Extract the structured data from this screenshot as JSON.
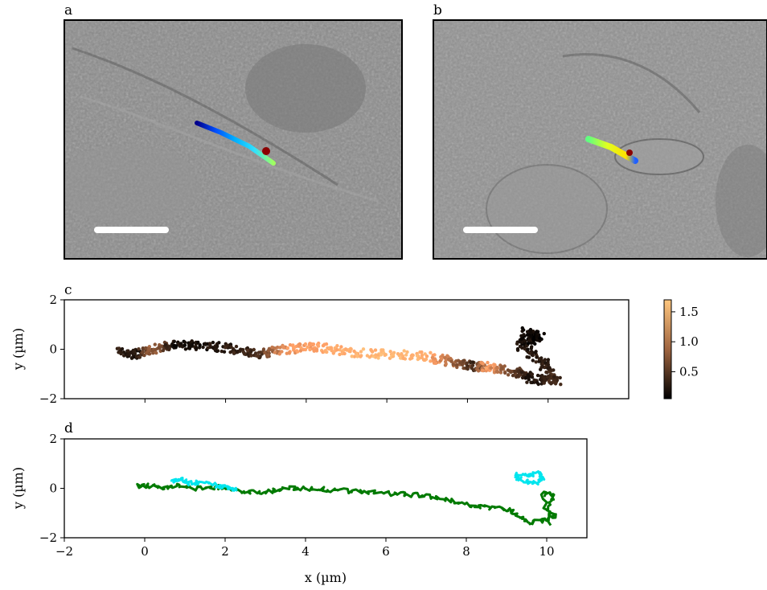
{
  "panels": {
    "a": {
      "label": "a"
    },
    "b": {
      "label": "b"
    },
    "c": {
      "label": "c"
    },
    "d": {
      "label": "d"
    }
  },
  "colors": {
    "micrograph_bg": "#8a8a8a",
    "trajectory_d_main": "#007a00",
    "trajectory_d_highlight": "#00e5ee",
    "scalebar": "#ffffff",
    "end_marker": "#8b0000"
  },
  "chart_data": [
    {
      "panel": "c",
      "type": "scatter",
      "xlim": [
        -2,
        12
      ],
      "ylim": [
        -2,
        2
      ],
      "xticks": [],
      "yticks": [
        -2,
        0,
        2
      ],
      "xlabel": "",
      "ylabel": "y (µm)",
      "colormap": "copper",
      "colorbar": {
        "ticks": [
          0.5,
          1.0,
          1.5
        ],
        "tick_labels": [
          "0.5",
          "1.0",
          "1.5"
        ],
        "range": [
          0.05,
          1.7
        ]
      },
      "path": [
        {
          "x": -0.6,
          "y": -0.1,
          "c": 0.3
        },
        {
          "x": -0.2,
          "y": -0.2,
          "c": 0.2
        },
        {
          "x": 0.2,
          "y": 0.0,
          "c": 0.9
        },
        {
          "x": 0.8,
          "y": 0.2,
          "c": 0.15
        },
        {
          "x": 1.5,
          "y": 0.15,
          "c": 0.2
        },
        {
          "x": 2.2,
          "y": 0.0,
          "c": 0.3
        },
        {
          "x": 2.8,
          "y": -0.2,
          "c": 0.4
        },
        {
          "x": 3.5,
          "y": 0.0,
          "c": 1.3
        },
        {
          "x": 4.2,
          "y": 0.1,
          "c": 1.4
        },
        {
          "x": 5.0,
          "y": -0.1,
          "c": 1.5
        },
        {
          "x": 6.0,
          "y": -0.2,
          "c": 1.6
        },
        {
          "x": 7.0,
          "y": -0.3,
          "c": 1.5
        },
        {
          "x": 7.6,
          "y": -0.5,
          "c": 1.0
        },
        {
          "x": 8.2,
          "y": -0.7,
          "c": 0.3
        },
        {
          "x": 8.5,
          "y": -0.7,
          "c": 1.4
        },
        {
          "x": 9.2,
          "y": -0.9,
          "c": 0.5
        },
        {
          "x": 9.6,
          "y": -1.2,
          "c": 0.2
        },
        {
          "x": 10.2,
          "y": -1.3,
          "c": 0.4
        },
        {
          "x": 9.9,
          "y": -0.6,
          "c": 0.3
        },
        {
          "x": 9.3,
          "y": 0.2,
          "c": 0.2
        },
        {
          "x": 9.8,
          "y": 0.5,
          "c": 0.1
        },
        {
          "x": 9.4,
          "y": 0.7,
          "c": 0.15
        }
      ]
    },
    {
      "panel": "d",
      "type": "line",
      "xlim": [
        -2,
        11
      ],
      "ylim": [
        -2,
        2
      ],
      "xticks": [
        -2,
        0,
        2,
        4,
        6,
        8,
        10
      ],
      "xtick_labels": [
        "−2",
        "0",
        "2",
        "4",
        "6",
        "8",
        "10"
      ],
      "yticks": [
        -2,
        0,
        2
      ],
      "xlabel": "x (µm)",
      "ylabel": "y (µm)",
      "series": [
        {
          "color": "#007a00",
          "values": [
            [
              -0.2,
              0.1
            ],
            [
              0.1,
              0.1
            ],
            [
              0.4,
              0.05
            ],
            [
              0.8,
              0.1
            ],
            [
              1.2,
              0.0
            ],
            [
              1.6,
              0.05
            ],
            [
              2.0,
              0.05
            ],
            [
              2.4,
              -0.1
            ],
            [
              2.8,
              -0.15
            ],
            [
              3.2,
              -0.1
            ],
            [
              3.6,
              0.0
            ],
            [
              4.0,
              0.0
            ],
            [
              4.5,
              -0.05
            ],
            [
              5.0,
              -0.1
            ],
            [
              5.5,
              -0.15
            ],
            [
              6.0,
              -0.2
            ],
            [
              6.5,
              -0.25
            ],
            [
              7.0,
              -0.3
            ],
            [
              7.5,
              -0.45
            ],
            [
              8.0,
              -0.65
            ],
            [
              8.4,
              -0.75
            ],
            [
              8.8,
              -0.8
            ],
            [
              9.1,
              -0.9
            ],
            [
              9.3,
              -1.2
            ],
            [
              9.6,
              -1.4
            ],
            [
              9.9,
              -1.3
            ],
            [
              10.2,
              -1.1
            ],
            [
              10.0,
              -0.8
            ],
            [
              10.2,
              -0.3
            ],
            [
              9.9,
              -0.2
            ],
            [
              10.1,
              -1.5
            ]
          ]
        },
        {
          "color": "#00e5ee",
          "values": [
            [
              0.7,
              0.3
            ],
            [
              0.9,
              0.35
            ],
            [
              1.1,
              0.2
            ],
            [
              1.4,
              0.25
            ],
            [
              1.8,
              0.1
            ],
            [
              2.1,
              0.0
            ],
            [
              2.3,
              -0.1
            ]
          ]
        },
        {
          "color": "#00e5ee",
          "values": [
            [
              9.2,
              0.5
            ],
            [
              9.4,
              0.3
            ],
            [
              9.7,
              0.2
            ],
            [
              9.9,
              0.4
            ],
            [
              9.8,
              0.6
            ],
            [
              9.5,
              0.55
            ],
            [
              9.2,
              0.55
            ]
          ]
        }
      ]
    }
  ]
}
